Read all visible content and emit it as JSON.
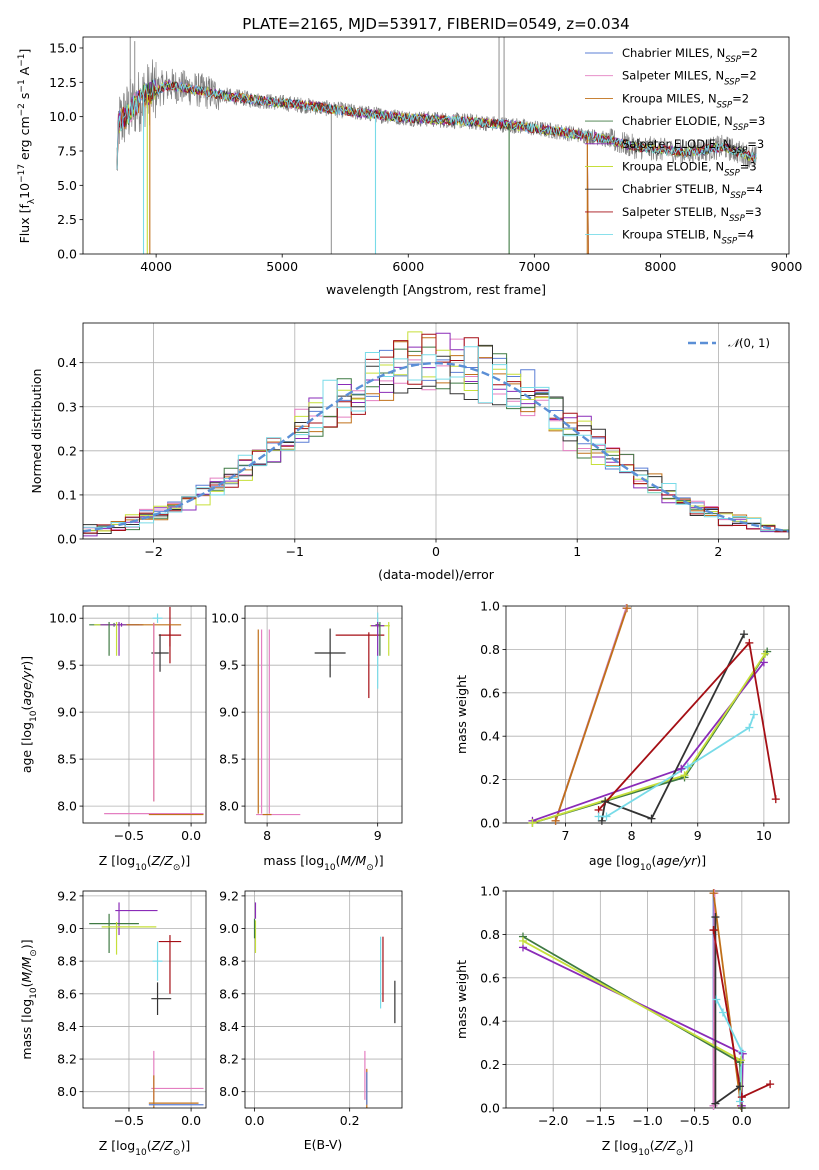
{
  "figure": {
    "title": "PLATE=2165, MJD=53917, FIBERID=0549, z=0.034"
  },
  "models": [
    {
      "name": "Chabrier MILES",
      "nssp": "2",
      "color": "#5b7fd6"
    },
    {
      "name": "Salpeter MILES",
      "nssp": "2",
      "color": "#e47fc1"
    },
    {
      "name": "Kroupa MILES",
      "nssp": "2",
      "color": "#c0701a"
    },
    {
      "name": "Chabrier ELODIE",
      "nssp": "3",
      "color": "#3f7a43"
    },
    {
      "name": "Salpeter ELODIE",
      "nssp": "3",
      "color": "#8a2bb8"
    },
    {
      "name": "Kroupa ELODIE",
      "nssp": "3",
      "color": "#c6df3a"
    },
    {
      "name": "Chabrier STELIB",
      "nssp": "4",
      "color": "#333333"
    },
    {
      "name": "Salpeter STELIB",
      "nssp": "3",
      "color": "#a50f15"
    },
    {
      "name": "Kroupa STELIB",
      "nssp": "4",
      "color": "#78dbe8"
    }
  ],
  "chart_data": [
    {
      "id": "spectrum",
      "type": "line",
      "title": "PLATE=2165, MJD=53917, FIBERID=0549, z=0.034",
      "xlabel": "wavelength [Angstrom, rest frame]",
      "ylabel_parts": [
        "Flux [f",
        "λ",
        "10",
        "−17",
        " erg cm",
        "−2",
        " s",
        "−1",
        " A",
        "−1",
        "]"
      ],
      "xlim": [
        3420,
        9020
      ],
      "ylim": [
        0,
        15.8
      ],
      "xticks": [
        4000,
        5000,
        6000,
        7000,
        8000,
        9000
      ],
      "yticks": [
        0.0,
        2.5,
        5.0,
        7.5,
        10.0,
        12.5,
        15.0
      ],
      "continuum": [
        [
          3700,
          9.5
        ],
        [
          3900,
          11.5
        ],
        [
          4100,
          12.3
        ],
        [
          4300,
          12.0
        ],
        [
          4500,
          11.6
        ],
        [
          4800,
          11.2
        ],
        [
          5200,
          10.8
        ],
        [
          5600,
          10.3
        ],
        [
          6000,
          9.9
        ],
        [
          6400,
          9.7
        ],
        [
          6800,
          9.4
        ],
        [
          7200,
          8.9
        ],
        [
          7500,
          8.5
        ],
        [
          7800,
          7.8
        ],
        [
          8200,
          7.4
        ],
        [
          8500,
          7.8
        ],
        [
          8750,
          7.0
        ]
      ],
      "data_line": {
        "color": "#808080"
      },
      "legend_loc": "upper right",
      "grid": false
    },
    {
      "id": "residuals",
      "type": "histogram",
      "xlabel": "(data-model)/error",
      "ylabel": "Normed distribution",
      "xlim": [
        -2.5,
        2.5
      ],
      "ylim": [
        0,
        0.49
      ],
      "xticks": [
        -2,
        -1,
        0,
        1,
        2
      ],
      "yticks": [
        0.0,
        0.1,
        0.2,
        0.3,
        0.4
      ],
      "bin_width": 0.1,
      "normal_label_parts": [
        "𝒩",
        "(0, 1)"
      ],
      "normal_color": "#5b8fd6",
      "legend_loc": "upper right",
      "grid": true
    },
    {
      "id": "age_vs_Z",
      "type": "errorbar",
      "xlabel_parts": [
        "Z [log",
        "10",
        "(",
        "Z/Z",
        "⊙",
        ")]"
      ],
      "ylabel_parts": [
        "age  [log",
        "10",
        "(",
        "age/yr",
        ")]"
      ],
      "xlim": [
        -0.87,
        0.12
      ],
      "ylim": [
        7.82,
        10.13
      ],
      "xticks": [
        -0.5,
        0.0
      ],
      "yticks": [
        8.0,
        8.5,
        9.0,
        9.5,
        10.0
      ],
      "grid": true,
      "points": [
        {
          "m": 8,
          "x": -0.27,
          "y": 10.0,
          "xe": 0.04,
          "ye": 0.05
        },
        {
          "m": 7,
          "x": -0.17,
          "y": 9.82,
          "xe": 0.09,
          "ye": 0.12
        },
        {
          "m": 7,
          "x": -0.17,
          "y": 9.82,
          "xe": 0.0,
          "ye": 0.3
        },
        {
          "m": 6,
          "x": -0.25,
          "y": 9.63,
          "xe": 0.07,
          "ye": 0.2
        },
        {
          "m": 3,
          "x": -0.62,
          "y": 9.93,
          "xe": 0.2,
          "ye": 0.02
        },
        {
          "m": 5,
          "x": -0.58,
          "y": 9.93,
          "xe": 0.2,
          "ye": 0.02
        },
        {
          "m": 4,
          "x": -0.56,
          "y": 9.93,
          "xe": 0.17,
          "ye": 0.02
        },
        {
          "m": 2,
          "x": -0.3,
          "y": 9.93,
          "xe": 0.22,
          "ye": 0.02
        },
        {
          "m": 3,
          "x": -0.66,
          "y": 9.78,
          "xe": 0.0,
          "ye": 0.18
        },
        {
          "m": 5,
          "x": -0.6,
          "y": 9.78,
          "xe": 0.0,
          "ye": 0.18
        },
        {
          "m": 4,
          "x": -0.58,
          "y": 9.78,
          "xe": 0.0,
          "ye": 0.18
        },
        {
          "m": 2,
          "x": -0.3,
          "y": 9.0,
          "xe": 0.0,
          "ye": 0.95
        },
        {
          "m": 1,
          "x": -0.3,
          "y": 9.0,
          "xe": 0.0,
          "ye": 0.95
        },
        {
          "m": 2,
          "x": -0.3,
          "y": 7.92,
          "xe": 0.0,
          "ye": 0.0
        },
        {
          "m": 1,
          "x": -0.3,
          "y": 7.92,
          "xe": 0.4,
          "ye": 0.0
        },
        {
          "m": 2,
          "x": -0.12,
          "y": 7.91,
          "xe": 0.22,
          "ye": 0.0
        }
      ]
    },
    {
      "id": "age_vs_mass",
      "type": "errorbar",
      "xlabel_parts": [
        "mass [log",
        "10",
        "(",
        "M/M",
        "⊙",
        ")]"
      ],
      "xlim": [
        7.8,
        9.22
      ],
      "ylim": [
        7.82,
        10.13
      ],
      "xticks": [
        8,
        9
      ],
      "yticks": [
        8.0,
        8.5,
        9.0,
        9.5,
        10.0
      ],
      "grid": true,
      "points": [
        {
          "m": 8,
          "x": 9.0,
          "y": 10.0,
          "xe": 0.0,
          "ye": 0.06
        },
        {
          "m": 8,
          "x": 9.0,
          "y": 9.6,
          "xe": 0.0,
          "ye": 0.35
        },
        {
          "m": 7,
          "x": 8.84,
          "y": 9.82,
          "xe": 0.22,
          "ye": 0.0
        },
        {
          "m": 7,
          "x": 8.92,
          "y": 9.5,
          "xe": 0.0,
          "ye": 0.35
        },
        {
          "m": 6,
          "x": 8.57,
          "y": 9.63,
          "xe": 0.14,
          "ye": 0.26
        },
        {
          "m": 3,
          "x": 9.0,
          "y": 9.93,
          "xe": 0.02,
          "ye": 0.03
        },
        {
          "m": 5,
          "x": 9.02,
          "y": 9.92,
          "xe": 0.09,
          "ye": 0.02
        },
        {
          "m": 4,
          "x": 9.0,
          "y": 9.92,
          "xe": 0.06,
          "ye": 0.02
        },
        {
          "m": 3,
          "x": 9.02,
          "y": 9.78,
          "xe": 0.0,
          "ye": 0.18
        },
        {
          "m": 5,
          "x": 9.1,
          "y": 9.78,
          "xe": 0.0,
          "ye": 0.18
        },
        {
          "m": 4,
          "x": 9.0,
          "y": 9.78,
          "xe": 0.0,
          "ye": 0.18
        },
        {
          "m": 2,
          "x": 7.92,
          "y": 8.9,
          "xe": 0.0,
          "ye": 0.98
        },
        {
          "m": 1,
          "x": 7.95,
          "y": 8.9,
          "xe": 0.0,
          "ye": 0.98
        },
        {
          "m": 1,
          "x": 8.02,
          "y": 8.9,
          "xe": 0.0,
          "ye": 0.98
        },
        {
          "m": 1,
          "x": 8.1,
          "y": 7.91,
          "xe": 0.2,
          "ye": 0.0
        },
        {
          "m": 2,
          "x": 8.0,
          "y": 7.91,
          "xe": 0.04,
          "ye": 0.0
        }
      ]
    },
    {
      "id": "massweight_vs_age",
      "type": "line",
      "xlabel_parts": [
        "age  [log",
        "10",
        "(",
        "age/yr",
        ")]"
      ],
      "ylabel": "mass weight",
      "xlim": [
        6.1,
        10.38
      ],
      "ylim": [
        0,
        1.0
      ],
      "xticks": [
        7,
        8,
        9,
        10
      ],
      "yticks": [
        0.0,
        0.2,
        0.4,
        0.6,
        0.8,
        1.0
      ],
      "grid": true,
      "series": [
        {
          "m": 0,
          "x": [
            6.85,
            7.92
          ],
          "y": [
            0.01,
            0.99
          ]
        },
        {
          "m": 1,
          "x": [
            6.85,
            7.92
          ],
          "y": [
            0.01,
            0.99
          ]
        },
        {
          "m": 2,
          "x": [
            6.85,
            7.93
          ],
          "y": [
            0.01,
            0.99
          ]
        },
        {
          "m": 3,
          "x": [
            6.5,
            8.8,
            10.05
          ],
          "y": [
            0.0,
            0.21,
            0.79
          ]
        },
        {
          "m": 4,
          "x": [
            6.5,
            8.75,
            10.0
          ],
          "y": [
            0.01,
            0.25,
            0.74
          ]
        },
        {
          "m": 5,
          "x": [
            6.5,
            8.8,
            10.02
          ],
          "y": [
            0.0,
            0.22,
            0.78
          ]
        },
        {
          "m": 6,
          "x": [
            7.55,
            7.6,
            8.3,
            9.7
          ],
          "y": [
            0.01,
            0.1,
            0.02,
            0.87
          ]
        },
        {
          "m": 7,
          "x": [
            7.5,
            9.78,
            10.18
          ],
          "y": [
            0.06,
            0.83,
            0.11
          ]
        },
        {
          "m": 8,
          "x": [
            7.5,
            7.62,
            8.85,
            9.78,
            9.85
          ],
          "y": [
            0.03,
            0.03,
            0.26,
            0.44,
            0.5
          ]
        }
      ]
    },
    {
      "id": "mass_vs_Z",
      "type": "errorbar",
      "xlabel_parts": [
        "Z [log",
        "10",
        "(",
        "Z/Z",
        "⊙",
        ")]"
      ],
      "ylabel_parts": [
        "mass [log",
        "10",
        "(",
        "M/M",
        "⊙",
        ")]"
      ],
      "xlim": [
        -0.87,
        0.12
      ],
      "ylim": [
        7.9,
        9.23
      ],
      "xticks": [
        -0.5,
        0.0
      ],
      "yticks": [
        8.0,
        8.2,
        8.4,
        8.6,
        8.8,
        9.0,
        9.2
      ],
      "grid": true,
      "points": [
        {
          "m": 4,
          "x": -0.44,
          "y": 9.11,
          "xe": 0.17,
          "ye": 0.0
        },
        {
          "m": 4,
          "x": -0.58,
          "y": 9.06,
          "xe": 0.0,
          "ye": 0.1
        },
        {
          "m": 3,
          "x": -0.62,
          "y": 9.03,
          "xe": 0.2,
          "ye": 0.0
        },
        {
          "m": 3,
          "x": -0.66,
          "y": 8.97,
          "xe": 0.0,
          "ye": 0.12
        },
        {
          "m": 5,
          "x": -0.5,
          "y": 9.01,
          "xe": 0.22,
          "ye": 0.0
        },
        {
          "m": 5,
          "x": -0.6,
          "y": 8.94,
          "xe": 0.0,
          "ye": 0.1
        },
        {
          "m": 7,
          "x": -0.17,
          "y": 8.92,
          "xe": 0.09,
          "ye": 0.0
        },
        {
          "m": 7,
          "x": -0.17,
          "y": 8.78,
          "xe": 0.0,
          "ye": 0.18
        },
        {
          "m": 8,
          "x": -0.27,
          "y": 8.8,
          "xe": 0.04,
          "ye": 0.12
        },
        {
          "m": 6,
          "x": -0.24,
          "y": 8.57,
          "xe": 0.08,
          "ye": 0.0
        },
        {
          "m": 6,
          "x": -0.27,
          "y": 8.57,
          "xe": 0.0,
          "ye": 0.1
        },
        {
          "m": 1,
          "x": -0.3,
          "y": 8.1,
          "xe": 0.0,
          "ye": 0.15
        },
        {
          "m": 1,
          "x": -0.11,
          "y": 8.02,
          "xe": 0.21,
          "ye": 0.0
        },
        {
          "m": 2,
          "x": -0.3,
          "y": 8.0,
          "xe": 0.0,
          "ye": 0.1
        },
        {
          "m": 0,
          "x": -0.12,
          "y": 7.92,
          "xe": 0.22,
          "ye": 0.0
        },
        {
          "m": 2,
          "x": -0.14,
          "y": 7.93,
          "xe": 0.2,
          "ye": 0.0
        }
      ]
    },
    {
      "id": "mass_vs_ebv",
      "type": "errorbar",
      "xlabel": "E(B-V)",
      "xlim": [
        -0.02,
        0.31
      ],
      "ylim": [
        7.9,
        9.23
      ],
      "xticks": [
        0.0,
        0.2
      ],
      "yticks": [
        8.0,
        8.2,
        8.4,
        8.6,
        8.8,
        9.0,
        9.2
      ],
      "grid": true,
      "points": [
        {
          "m": 4,
          "x": 0.002,
          "y": 9.11,
          "xe": 0.0,
          "ye": 0.05
        },
        {
          "m": 5,
          "x": 0.002,
          "y": 8.95,
          "xe": 0.0,
          "ye": 0.1
        },
        {
          "m": 3,
          "x": 0.0,
          "y": 9.0,
          "xe": 0.0,
          "ye": 0.06
        },
        {
          "m": 7,
          "x": 0.27,
          "y": 8.75,
          "xe": 0.0,
          "ye": 0.2
        },
        {
          "m": 8,
          "x": 0.265,
          "y": 8.73,
          "xe": 0.0,
          "ye": 0.22
        },
        {
          "m": 6,
          "x": 0.295,
          "y": 8.55,
          "xe": 0.0,
          "ye": 0.13
        },
        {
          "m": 1,
          "x": 0.232,
          "y": 8.1,
          "xe": 0.0,
          "ye": 0.15
        },
        {
          "m": 2,
          "x": 0.236,
          "y": 8.02,
          "xe": 0.0,
          "ye": 0.12
        },
        {
          "m": 0,
          "x": 0.236,
          "y": 8.02,
          "xe": 0.0,
          "ye": 0.1
        }
      ]
    },
    {
      "id": "massweight_vs_Z",
      "type": "line",
      "xlabel_parts": [
        "Z [log",
        "10",
        "(",
        "Z/Z",
        "⊙",
        ")]"
      ],
      "ylabel": "mass weight",
      "xlim": [
        -2.5,
        0.5
      ],
      "ylim": [
        0,
        1.0
      ],
      "xticks": [
        -2.0,
        -1.5,
        -1.0,
        -0.5,
        0.0
      ],
      "yticks": [
        0.0,
        0.2,
        0.4,
        0.6,
        0.8,
        1.0
      ],
      "grid": true,
      "series": [
        {
          "m": 0,
          "x": [
            -0.3,
            -0.3
          ],
          "y": [
            0.99,
            0.01
          ]
        },
        {
          "m": 1,
          "x": [
            -0.29,
            -0.3
          ],
          "y": [
            0.99,
            0.01
          ]
        },
        {
          "m": 2,
          "x": [
            -0.3,
            -0.01
          ],
          "y": [
            0.99,
            0.01
          ]
        },
        {
          "m": 3,
          "x": [
            -2.32,
            -0.02,
            0.0
          ],
          "y": [
            0.79,
            0.21,
            0.0
          ]
        },
        {
          "m": 4,
          "x": [
            -2.32,
            0.01,
            0.0
          ],
          "y": [
            0.74,
            0.25,
            0.01
          ]
        },
        {
          "m": 5,
          "x": [
            -2.32,
            -0.01,
            0.0
          ],
          "y": [
            0.77,
            0.22,
            0.0
          ]
        },
        {
          "m": 6,
          "x": [
            -0.28,
            -0.28,
            -0.02,
            0.0
          ],
          "y": [
            0.88,
            0.02,
            0.1,
            0.0
          ]
        },
        {
          "m": 7,
          "x": [
            -0.3,
            -0.3,
            0.0,
            0.3
          ],
          "y": [
            0.82,
            0.82,
            0.05,
            0.11
          ]
        },
        {
          "m": 8,
          "x": [
            -0.27,
            -0.2,
            0.0,
            -0.02
          ],
          "y": [
            0.5,
            0.44,
            0.26,
            0.03
          ]
        }
      ]
    }
  ]
}
